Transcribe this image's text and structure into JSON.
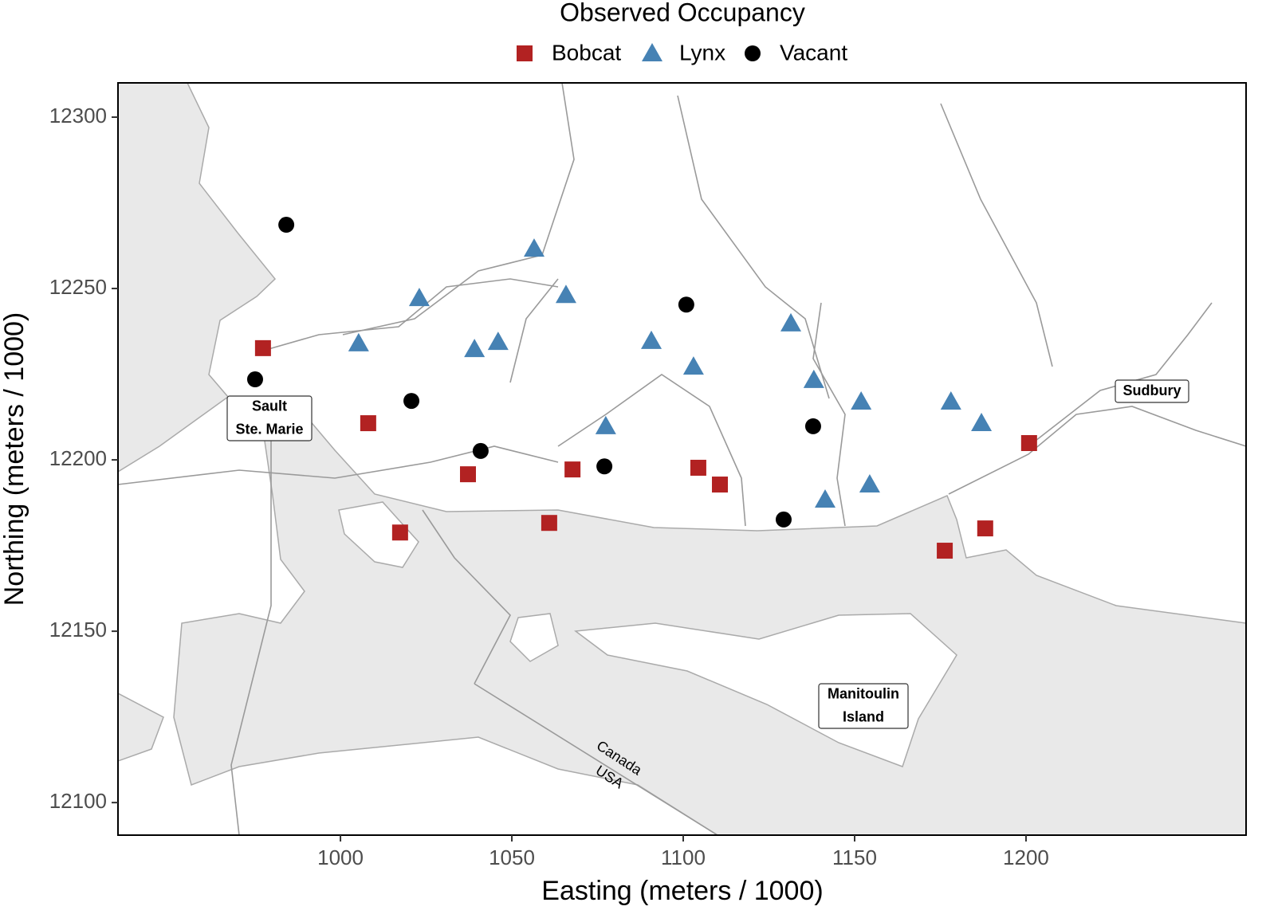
{
  "chart_data": {
    "type": "scatter",
    "legend_title": "Observed Occupancy",
    "legend_position": "top",
    "x_label": "Easting (meters / 1000)",
    "y_label": "Northing (meters / 1000)",
    "xlim": [
      935.1,
      1264.2
    ],
    "ylim": [
      12090.5,
      12310
    ],
    "xticks": [
      1000,
      1050,
      1100,
      1150,
      1200
    ],
    "yticks": [
      12100,
      12150,
      12200,
      12250,
      12300
    ],
    "series": [
      {
        "name": "Bobcat",
        "color": "#b22222",
        "marker": "square",
        "x": [
          977.4,
          1008.1,
          1037.2,
          1017.4,
          1060.9,
          1067.7,
          1104.4,
          1110.7,
          1176.3,
          1188.1,
          1200.9
        ],
        "values": [
          12232.6,
          12210.7,
          12195.8,
          12178.8,
          12181.6,
          12197.2,
          12197.7,
          12192.8,
          12173.5,
          12180.0,
          12204.9
        ]
      },
      {
        "name": "Lynx",
        "color": "#4682b4",
        "marker": "triangle",
        "x": [
          1056.5,
          1023.0,
          1065.8,
          1005.3,
          1039.1,
          1046.0,
          1090.7,
          1131.4,
          1103.0,
          1138.1,
          1151.9,
          1178.1,
          1187.0,
          1077.4,
          1141.4,
          1154.4
        ],
        "values": [
          12261.6,
          12247.2,
          12248.1,
          12234.0,
          12232.3,
          12234.4,
          12234.7,
          12239.8,
          12227.2,
          12223.3,
          12217.0,
          12217.0,
          12210.7,
          12209.8,
          12188.4,
          12192.8
        ]
      },
      {
        "name": "Vacant",
        "color": "#000000",
        "marker": "circle",
        "x": [
          984.2,
          975.1,
          1020.7,
          1040.9,
          1077.0,
          1100.9,
          1137.9,
          1129.3
        ],
        "values": [
          12268.6,
          12223.5,
          12217.2,
          12202.6,
          12198.1,
          12245.3,
          12209.8,
          12182.6
        ]
      }
    ],
    "annotations": [
      {
        "lines": [
          "Sault",
          "Ste. Marie"
        ]
      },
      {
        "lines": [
          "Sudbury"
        ]
      },
      {
        "lines": [
          "Manitoulin",
          "Island"
        ]
      },
      {
        "lines": [
          "Canada"
        ]
      },
      {
        "lines": [
          "USA"
        ]
      }
    ]
  }
}
